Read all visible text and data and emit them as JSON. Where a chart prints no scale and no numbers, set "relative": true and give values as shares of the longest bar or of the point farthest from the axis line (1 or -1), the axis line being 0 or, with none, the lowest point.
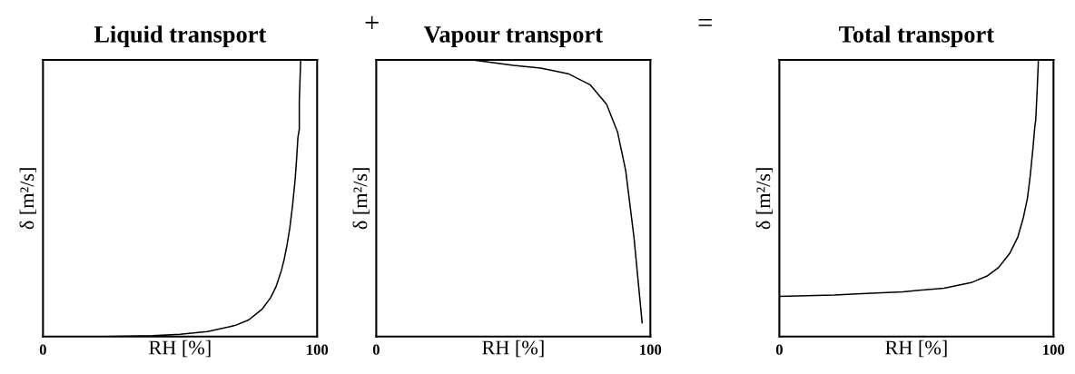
{
  "chart_data": [
    {
      "type": "line",
      "title": "Liquid transport",
      "xlabel": "RH [%]",
      "ylabel": "δ [m²/s]",
      "relative": true,
      "xlim": [
        0,
        100
      ],
      "xticks": [
        0,
        100
      ],
      "tick_labels": "x",
      "annotations": [
        "+"
      ],
      "series": [
        {
          "color": "#000000",
          "x": [
            22,
            40,
            50,
            60,
            70,
            75,
            80,
            83,
            85,
            87,
            88,
            89,
            90,
            91,
            92,
            92.5,
            93,
            93.5,
            93.5,
            94
          ],
          "values": [
            0,
            0.003,
            0.008,
            0.018,
            0.04,
            0.06,
            0.1,
            0.14,
            0.18,
            0.24,
            0.28,
            0.33,
            0.39,
            0.47,
            0.57,
            0.64,
            0.72,
            0.75,
            0.85,
            1.0
          ]
        }
      ]
    },
    {
      "type": "line",
      "title": "Vapour transport",
      "xlabel": "RH [%]",
      "ylabel": "δ [m²/s]",
      "relative": true,
      "xlim": [
        0,
        100
      ],
      "xticks": [
        0,
        100
      ],
      "tick_labels": "x",
      "annotations": [
        "="
      ],
      "series": [
        {
          "color": "#000000",
          "x": [
            0,
            35,
            50,
            60,
            70,
            78,
            84,
            88,
            91,
            94,
            97
          ],
          "values": [
            1,
            1,
            0.98,
            0.97,
            0.95,
            0.91,
            0.84,
            0.74,
            0.6,
            0.36,
            0.05
          ]
        }
      ]
    },
    {
      "type": "line",
      "title": "Total transport",
      "xlabel": "RH [%]",
      "ylabel": "δ [m²/s]",
      "relative": true,
      "xlim": [
        0,
        100
      ],
      "xticks": [
        0,
        100
      ],
      "tick_labels": "x",
      "series": [
        {
          "color": "#000000",
          "x": [
            0,
            20,
            30,
            45,
            60,
            70,
            76,
            80,
            84,
            87,
            89,
            90.5,
            91.5,
            92.5,
            93.2,
            93.5,
            94,
            94.5
          ],
          "values": [
            0.145,
            0.15,
            0.155,
            0.162,
            0.175,
            0.195,
            0.22,
            0.25,
            0.3,
            0.36,
            0.43,
            0.5,
            0.58,
            0.68,
            0.76,
            0.78,
            0.88,
            1.0
          ]
        }
      ]
    }
  ]
}
